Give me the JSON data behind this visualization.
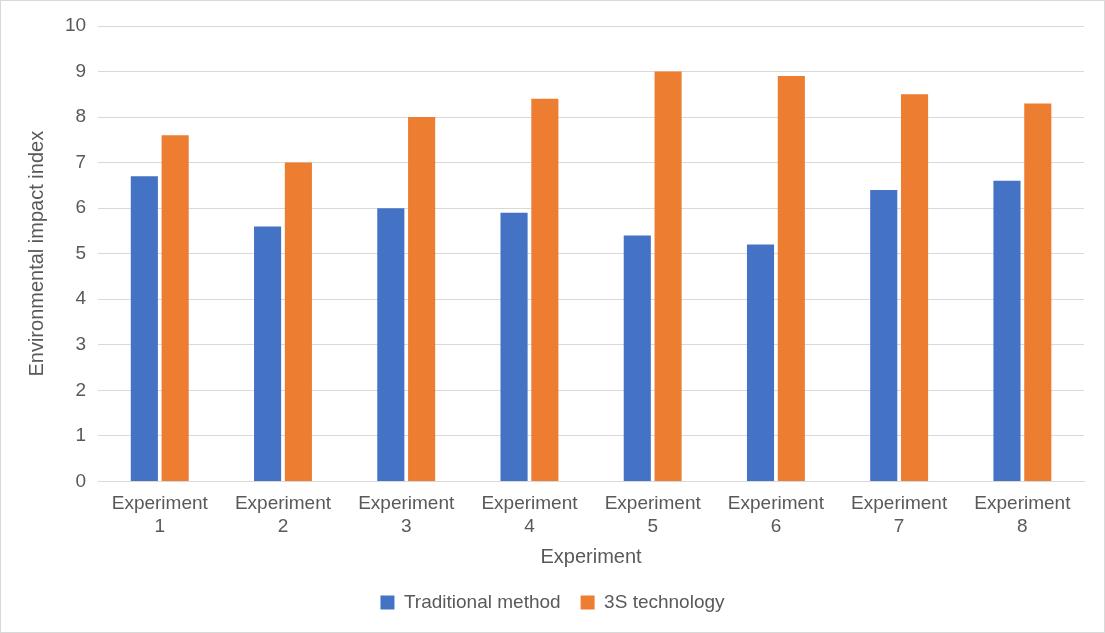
{
  "chart_data": {
    "type": "bar",
    "xlabel": "Experiment",
    "ylabel": "Environmental impact index",
    "categories": [
      "Experiment 1",
      "Experiment 2",
      "Experiment 3",
      "Experiment 4",
      "Experiment 5",
      "Experiment 6",
      "Experiment 7",
      "Experiment 8"
    ],
    "series": [
      {
        "name": "Traditional method",
        "color": "#4472c4",
        "values": [
          6.7,
          5.6,
          6.0,
          5.9,
          5.4,
          5.2,
          6.4,
          6.6
        ]
      },
      {
        "name": "3S technology",
        "color": "#ed7d31",
        "values": [
          7.6,
          7.0,
          8.0,
          8.4,
          9.0,
          8.9,
          8.5,
          8.3
        ]
      }
    ],
    "ylim": [
      0,
      10
    ],
    "yticks": [
      0,
      1,
      2,
      3,
      4,
      5,
      6,
      7,
      8,
      9,
      10
    ],
    "grid": "y",
    "legend": "bottom"
  }
}
